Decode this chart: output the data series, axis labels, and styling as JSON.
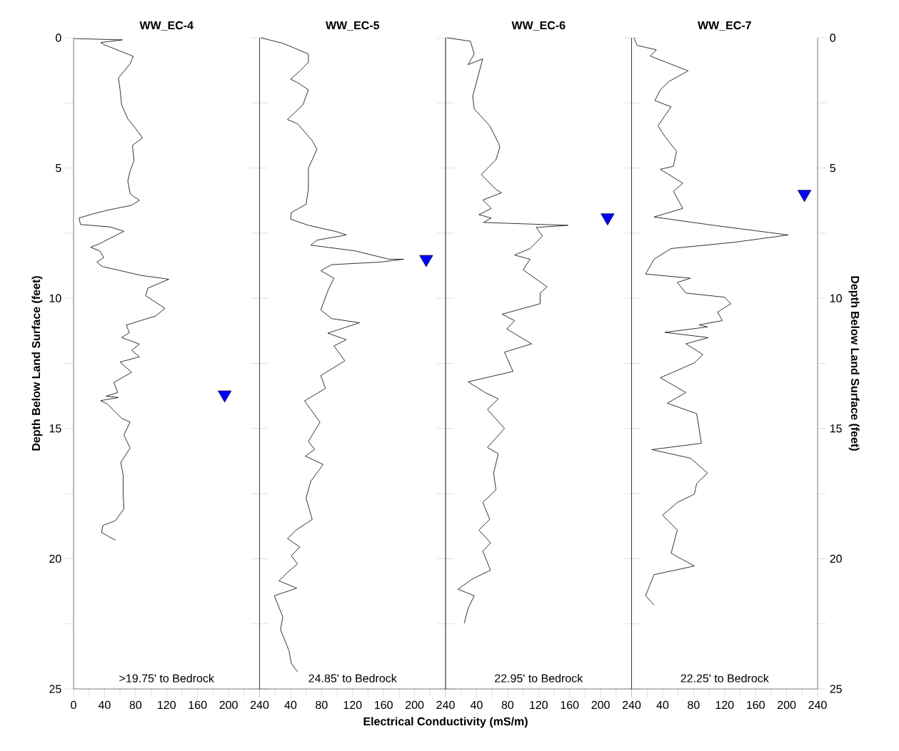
{
  "chart_data": [
    {
      "type": "line",
      "title": "WW_EC-4",
      "ylabel": "Depth Below Land Surface (feet)",
      "annotations": [
        ">19.75' to Bedrock"
      ],
      "xlim": [
        0,
        240
      ],
      "xticks": [
        0,
        {
          "value": 20,
          "label": null
        },
        40,
        {
          "value": 60,
          "label": null
        },
        80,
        {
          "value": 100,
          "label": null
        },
        120,
        {
          "value": 140,
          "label": null
        },
        160,
        {
          "value": 180,
          "label": null
        },
        200,
        {
          "value": 220,
          "label": null
        },
        240
      ],
      "ylim": [
        25,
        0
      ],
      "yticks": [
        0,
        {
          "value": 2.5,
          "label": null
        },
        5,
        {
          "value": 7.5,
          "label": null
        },
        10,
        {
          "value": 12.5,
          "label": null
        },
        15,
        {
          "value": 17.5,
          "label": null
        },
        20,
        {
          "value": 22.5,
          "label": null
        },
        25
      ],
      "series": [
        {
          "color": "#000000",
          "marker": "none",
          "x": [
            0.7,
            63,
            35,
            40,
            77,
            73,
            58,
            60,
            62,
            70,
            78,
            89,
            76,
            78,
            73,
            70,
            73,
            85,
            75,
            42,
            24,
            7,
            9,
            47,
            65,
            47,
            34,
            22,
            34,
            39,
            30,
            37,
            87,
            123,
            96,
            93,
            118,
            106,
            68,
            72,
            62,
            85,
            75,
            85,
            60,
            75,
            52,
            57,
            42,
            58,
            35,
            44,
            62,
            73,
            65,
            73,
            61,
            64,
            64,
            65,
            54,
            38,
            36,
            54
          ],
          "values": [
            0.03,
            0.08,
            0.18,
            0.27,
            0.71,
            1.0,
            1.54,
            1.98,
            2.57,
            3.11,
            3.4,
            3.84,
            4.13,
            4.72,
            5.11,
            5.5,
            5.99,
            6.24,
            6.43,
            6.63,
            6.77,
            6.92,
            7.17,
            7.26,
            7.43,
            7.7,
            7.9,
            8.04,
            8.19,
            8.44,
            8.61,
            8.78,
            9.12,
            9.27,
            9.61,
            9.9,
            10.39,
            10.68,
            11.03,
            11.32,
            11.51,
            11.76,
            12.0,
            12.25,
            12.45,
            12.84,
            13.23,
            13.62,
            13.76,
            13.81,
            13.93,
            14.07,
            14.61,
            14.75,
            15.25,
            15.75,
            16.3,
            16.8,
            17.53,
            18.08,
            18.54,
            18.72,
            18.99,
            19.29
          ]
        },
        {
          "type": "scatter",
          "color": "#0000ff",
          "marker": "triangle",
          "x": [
            195
          ],
          "values": [
            13.7
          ]
        }
      ]
    },
    {
      "type": "line",
      "title": "WW_EC-5",
      "xlabel": "Electrical Conductivity (mS/m)",
      "annotations": [
        "24.85' to Bedrock"
      ],
      "tick_labels": "x",
      "xlim": [
        0,
        240
      ],
      "xticks": [
        {
          "value": 0,
          "label": null
        },
        {
          "value": 20,
          "label": null
        },
        40,
        {
          "value": 60,
          "label": null
        },
        80,
        {
          "value": 100,
          "label": null
        },
        120,
        {
          "value": 140,
          "label": null
        },
        160,
        {
          "value": 180,
          "label": null
        },
        200,
        {
          "value": 220,
          "label": null
        },
        240
      ],
      "ylim": [
        25,
        0
      ],
      "yticks": [
        0,
        2.5,
        5,
        7.5,
        10,
        12.5,
        15,
        17.5,
        20,
        22.5,
        25
      ],
      "series": [
        {
          "color": "#000000",
          "marker": "none",
          "x": [
            1.6,
            30,
            63,
            63,
            52,
            40,
            49,
            63,
            56,
            36,
            49,
            68,
            74,
            63,
            63,
            60,
            41,
            40,
            63,
            99,
            112,
            74,
            66,
            123,
            167,
            186,
            156,
            93,
            79,
            96,
            88,
            79,
            93,
            129,
            88,
            112,
            96,
            110,
            79,
            85,
            58,
            78,
            63,
            71,
            59,
            82,
            66,
            60,
            68,
            47,
            36,
            52,
            41,
            49,
            36,
            25,
            48,
            19,
            30,
            27,
            38,
            41,
            49
          ],
          "values": [
            0.0,
            0.21,
            0.62,
            0.94,
            1.27,
            1.59,
            1.72,
            2.0,
            2.57,
            3.14,
            3.3,
            3.95,
            4.28,
            5.01,
            5.82,
            6.39,
            6.71,
            6.96,
            7.2,
            7.44,
            7.57,
            7.77,
            7.96,
            8.18,
            8.5,
            8.5,
            8.61,
            8.71,
            8.94,
            9.23,
            9.72,
            10.45,
            10.78,
            10.94,
            11.34,
            11.59,
            11.83,
            12.4,
            12.97,
            13.46,
            13.94,
            14.76,
            15.49,
            15.81,
            16.06,
            16.38,
            17.03,
            17.68,
            18.49,
            18.9,
            19.23,
            19.55,
            19.88,
            20.2,
            20.53,
            20.85,
            21.13,
            21.42,
            22.23,
            22.72,
            23.53,
            24.02,
            24.34
          ]
        },
        {
          "type": "scatter",
          "color": "#0000ff",
          "marker": "triangle",
          "x": [
            215
          ],
          "values": [
            8.5
          ]
        }
      ]
    },
    {
      "type": "line",
      "title": "WW_EC-6",
      "annotations": [
        "22.95' to Bedrock"
      ],
      "tick_labels": "x",
      "xlim": [
        0,
        240
      ],
      "xticks": [
        {
          "value": 0,
          "label": null
        },
        {
          "value": 20,
          "label": null
        },
        40,
        {
          "value": 60,
          "label": null
        },
        80,
        {
          "value": 100,
          "label": null
        },
        120,
        {
          "value": 140,
          "label": null
        },
        160,
        {
          "value": 180,
          "label": null
        },
        200,
        {
          "value": 220,
          "label": null
        },
        240
      ],
      "ylim": [
        25,
        0
      ],
      "yticks": [
        0,
        2.5,
        5,
        7.5,
        10,
        12.5,
        15,
        17.5,
        20,
        22.5,
        25
      ],
      "series": [
        {
          "color": "#000000",
          "marker": "none",
          "x": [
            1.8,
            32,
            37,
            29,
            48,
            43,
            35,
            37,
            57,
            68,
            70,
            65,
            46,
            65,
            72,
            48,
            59,
            43,
            59,
            49,
            158,
            117,
            125,
            109,
            89,
            109,
            100,
            131,
            122,
            122,
            73,
            89,
            79,
            111,
            76,
            87,
            29,
            51,
            68,
            54,
            76,
            54,
            68,
            62,
            65,
            48,
            57,
            43,
            58,
            48,
            58,
            35,
            16,
            37,
            29,
            24
          ],
          "values": [
            0.0,
            0.13,
            0.62,
            1.03,
            0.81,
            1.35,
            2.24,
            2.73,
            3.38,
            4.03,
            4.19,
            4.68,
            5.25,
            5.82,
            5.95,
            6.23,
            6.55,
            6.79,
            6.92,
            7.09,
            7.2,
            7.28,
            7.61,
            8.09,
            8.34,
            8.5,
            8.91,
            9.56,
            9.8,
            10.21,
            10.61,
            10.86,
            11.18,
            11.75,
            12.07,
            12.81,
            13.21,
            13.62,
            13.86,
            14.27,
            15.0,
            15.73,
            15.97,
            16.71,
            17.36,
            17.84,
            18.49,
            18.9,
            19.39,
            19.71,
            20.44,
            20.77,
            21.17,
            21.42,
            21.91,
            22.48
          ]
        },
        {
          "type": "scatter",
          "color": "#0000ff",
          "marker": "triangle",
          "x": [
            209
          ],
          "values": [
            6.9
          ]
        }
      ]
    },
    {
      "type": "line",
      "title": "WW_EC-7",
      "y2label": "Depth Below Land Surface (feet)",
      "annotations": [
        "22.25' to Bedrock"
      ],
      "xlim": [
        0,
        240
      ],
      "xticks": [
        {
          "value": 0,
          "label": null
        },
        {
          "value": 20,
          "label": null
        },
        40,
        {
          "value": 60,
          "label": null
        },
        80,
        {
          "value": 100,
          "label": null
        },
        120,
        {
          "value": 140,
          "label": null
        },
        160,
        {
          "value": 180,
          "label": null
        },
        200,
        {
          "value": 220,
          "label": null
        },
        240
      ],
      "y2lim": [
        25,
        0
      ],
      "y2ticks": [
        0,
        {
          "value": 2.5,
          "label": null
        },
        5,
        {
          "value": 7.5,
          "label": null
        },
        10,
        {
          "value": 12.5,
          "label": null
        },
        15,
        {
          "value": 17.5,
          "label": null
        },
        20,
        {
          "value": 22.5,
          "label": null
        },
        25
      ],
      "series": [
        {
          "axis": "y2",
          "color": "#000000",
          "marker": "none",
          "x": [
            3,
            7,
            32,
            24,
            73,
            48,
            37,
            30,
            51,
            34,
            43,
            58,
            54,
            37,
            66,
            54,
            66,
            29,
            106,
            202,
            133,
            51,
            29,
            18,
            76,
            59,
            70,
            120,
            128,
            111,
            117,
            87,
            98,
            43,
            99,
            70,
            92,
            81,
            62,
            37,
            51,
            70,
            46,
            84,
            90,
            26,
            76,
            98,
            84,
            81,
            59,
            40,
            59,
            51,
            81,
            29,
            18,
            29
          ],
          "values": [
            0.0,
            0.29,
            0.46,
            0.7,
            1.27,
            1.68,
            2.0,
            2.41,
            2.65,
            3.38,
            3.79,
            4.36,
            4.93,
            5.05,
            5.58,
            5.9,
            6.55,
            6.88,
            7.2,
            7.57,
            7.85,
            8.09,
            8.5,
            9.07,
            9.23,
            9.39,
            9.8,
            9.96,
            10.21,
            10.53,
            10.86,
            11.02,
            11.1,
            11.31,
            11.51,
            11.75,
            12.16,
            12.48,
            12.73,
            13.05,
            13.29,
            13.62,
            14.03,
            14.43,
            15.57,
            15.81,
            16.14,
            16.71,
            17.11,
            17.52,
            17.84,
            18.33,
            18.9,
            19.79,
            20.28,
            20.61,
            21.42,
            21.78
          ]
        },
        {
          "type": "scatter",
          "axis": "y2",
          "color": "#0000ff",
          "marker": "triangle",
          "x": [
            223
          ],
          "values": [
            6.0
          ]
        }
      ]
    }
  ]
}
